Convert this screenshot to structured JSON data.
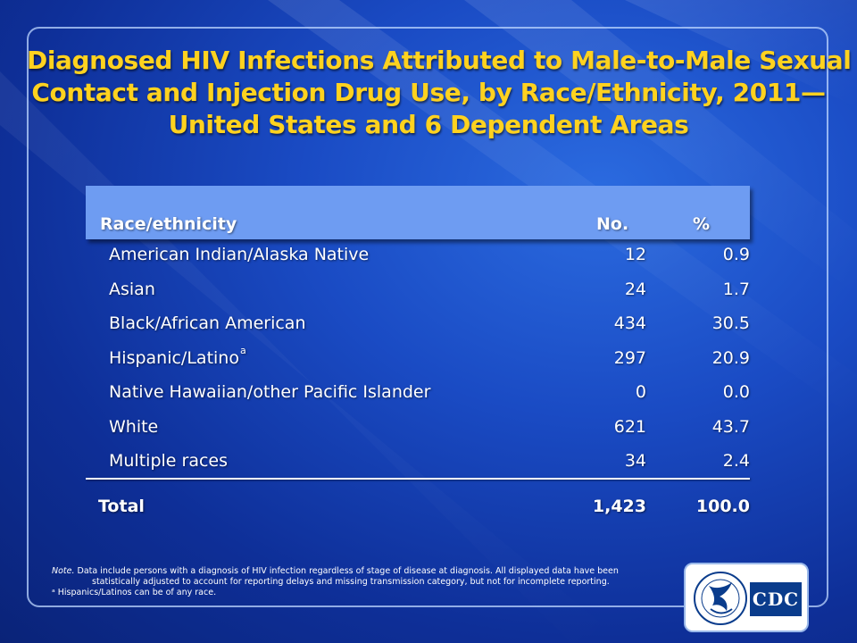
{
  "title": {
    "lines": [
      "Diagnosed HIV Infections Attributed to Male-to-Male Sexual",
      "Contact and Injection Drug Use, by Race/Ethnicity, 2011—",
      "United States and 6 Dependent Areas"
    ]
  },
  "table": {
    "headers": {
      "race": "Race/ethnicity",
      "no": "No.",
      "pct": "%"
    },
    "rows": [
      {
        "race": "American Indian/Alaska Native",
        "sup": "",
        "no": "12",
        "pct": "0.9"
      },
      {
        "race": "Asian",
        "sup": "",
        "no": "24",
        "pct": "1.7"
      },
      {
        "race": "Black/African American",
        "sup": "",
        "no": "434",
        "pct": "30.5"
      },
      {
        "race": "Hispanic/Latino",
        "sup": "a",
        "no": "297",
        "pct": "20.9"
      },
      {
        "race": "Native Hawaiian/other Pacific Islander",
        "sup": "",
        "no": "0",
        "pct": "0.0"
      },
      {
        "race": "White",
        "sup": "",
        "no": "621",
        "pct": "43.7"
      },
      {
        "race": "Multiple races",
        "sup": "",
        "no": "34",
        "pct": "2.4"
      }
    ],
    "total": {
      "race": "Total",
      "no": "1,423",
      "pct": "100.0"
    }
  },
  "note": {
    "label": "Note.",
    "line1": " Data include persons with a diagnosis of HIV infection regardless of stage of disease at diagnosis. All displayed data have been",
    "line2": "statistically adjusted to account for reporting delays  and missing transmission category, but not for incomplete reporting.",
    "footnote": "ᵃ Hispanics/Latinos can be of any race."
  },
  "logo": {
    "text": "CDC",
    "seal_icon": "hhs-eagle-seal-icon"
  },
  "colors": {
    "title": "#ffd21f",
    "header_bar": "#6e9cf2",
    "background": "#1a4bc4"
  }
}
